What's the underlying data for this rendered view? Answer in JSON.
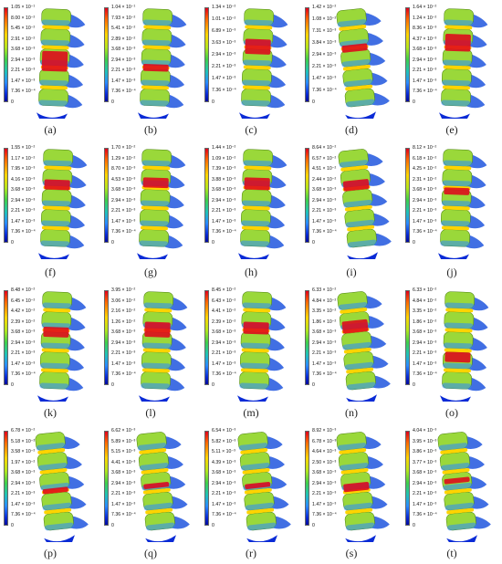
{
  "panels": [
    {
      "caption": "(a)",
      "ticks": [
        "1.05 × 10⁻¹",
        "8.00 × 10⁻²",
        "5.45 × 10⁻²",
        "2.91 × 10⁻²",
        "3.68 × 10⁻³",
        "2.94 × 10⁻³",
        "2.21 × 10⁻³",
        "1.47 × 10⁻³",
        "7.36 × 10⁻⁴",
        "0"
      ],
      "hot_band": [
        0.42,
        0.62
      ]
    },
    {
      "caption": "(b)",
      "ticks": [
        "1.04 × 10⁻¹",
        "7.93 × 10⁻²",
        "5.41 × 10⁻²",
        "2.89 × 10⁻²",
        "3.68 × 10⁻³",
        "2.94 × 10⁻³",
        "2.21 × 10⁻³",
        "1.47 × 10⁻³",
        "7.36 × 10⁻⁴",
        "0"
      ],
      "hot_band": [
        0.55,
        0.62
      ]
    },
    {
      "caption": "(c)",
      "ticks": [
        "1.34 × 10⁻²",
        "1.01 × 10⁻²",
        "6.89 × 10⁻³",
        "3.63 × 10⁻³",
        "2.94 × 10⁻³",
        "2.21 × 10⁻³",
        "1.47 × 10⁻³",
        "7.36 × 10⁻⁴",
        "0"
      ],
      "hot_band": [
        0.3,
        0.45
      ]
    },
    {
      "caption": "(d)",
      "ticks": [
        "1.42 × 10⁻²",
        "1.08 × 10⁻²",
        "7.31 × 10⁻³",
        "3.84 × 10⁻³",
        "2.94 × 10⁻³",
        "2.21 × 10⁻³",
        "1.47 × 10⁻³",
        "7.36 × 10⁻⁴",
        "0"
      ],
      "hot_band": [
        0.35,
        0.42
      ]
    },
    {
      "caption": "(e)",
      "ticks": [
        "1.64 × 10⁻²",
        "1.24 × 10⁻²",
        "8.36 × 10⁻³",
        "4.37 × 10⁻³",
        "3.68 × 10⁻³",
        "2.94 × 10⁻³",
        "2.21 × 10⁻³",
        "1.47 × 10⁻³",
        "7.36 × 10⁻⁴",
        "0"
      ],
      "hot_band": [
        0.25,
        0.42
      ]
    },
    {
      "caption": "(f)",
      "ticks": [
        "1.55 × 10⁻²",
        "1.17 × 10⁻²",
        "7.95 × 10⁻³",
        "4.16 × 10⁻³",
        "3.68 × 10⁻³",
        "2.94 × 10⁻³",
        "2.21 × 10⁻³",
        "1.47 × 10⁻³",
        "7.36 × 10⁻⁴",
        "0"
      ],
      "hot_band": [
        0.3,
        0.4
      ]
    },
    {
      "caption": "(g)",
      "ticks": [
        "1.70 × 10⁻²",
        "1.29 × 10⁻²",
        "8.70 × 10⁻³",
        "4.53 × 10⁻³",
        "3.68 × 10⁻³",
        "2.94 × 10⁻³",
        "2.21 × 10⁻³",
        "1.47 × 10⁻³",
        "7.36 × 10⁻⁴",
        "0"
      ],
      "hot_band": [
        0.28,
        0.38
      ]
    },
    {
      "caption": "(h)",
      "ticks": [
        "1.44 × 10⁻²",
        "1.09 × 10⁻²",
        "7.39 × 10⁻³",
        "3.88 × 10⁻³",
        "3.68 × 10⁻³",
        "2.94 × 10⁻³",
        "2.21 × 10⁻³",
        "1.47 × 10⁻³",
        "7.36 × 10⁻⁴",
        "0"
      ],
      "hot_band": [
        0.28,
        0.4
      ]
    },
    {
      "caption": "(i)",
      "ticks": [
        "8.64 × 10⁻²",
        "6.57 × 10⁻²",
        "4.51 × 10⁻²",
        "2.44 × 10⁻²",
        "3.68 × 10⁻³",
        "2.94 × 10⁻³",
        "2.21 × 10⁻³",
        "1.47 × 10⁻³",
        "7.36 × 10⁻⁴",
        "0"
      ],
      "hot_band": [
        0.3,
        0.4
      ]
    },
    {
      "caption": "(j)",
      "ticks": [
        "8.12 × 10⁻²",
        "6.18 × 10⁻²",
        "4.25 × 10⁻²",
        "2.31 × 10⁻²",
        "3.68 × 10⁻³",
        "2.94 × 10⁻³",
        "2.21 × 10⁻³",
        "1.47 × 10⁻³",
        "7.36 × 10⁻⁴",
        "0"
      ],
      "hot_band": [
        0.38,
        0.45
      ]
    },
    {
      "caption": "(k)",
      "ticks": [
        "8.48 × 10⁻²",
        "6.45 × 10⁻²",
        "4.42 × 10⁻²",
        "2.39 × 10⁻²",
        "3.68 × 10⁻³",
        "2.94 × 10⁻³",
        "2.21 × 10⁻³",
        "1.47 × 10⁻³",
        "7.36 × 10⁻⁴",
        "0"
      ],
      "hot_band": [
        0.35,
        0.45
      ]
    },
    {
      "caption": "(l)",
      "ticks": [
        "3.95 × 10⁻²",
        "3.06 × 10⁻²",
        "2.16 × 10⁻²",
        "1.26 × 10⁻²",
        "3.68 × 10⁻³",
        "2.94 × 10⁻³",
        "2.21 × 10⁻³",
        "1.47 × 10⁻³",
        "7.36 × 10⁻⁴",
        "0"
      ],
      "hot_band": [
        0.3,
        0.45
      ]
    },
    {
      "caption": "(m)",
      "ticks": [
        "8.45 × 10⁻²",
        "6.43 × 10⁻²",
        "4.41 × 10⁻²",
        "2.39 × 10⁻²",
        "3.68 × 10⁻³",
        "2.94 × 10⁻³",
        "2.21 × 10⁻³",
        "1.47 × 10⁻³",
        "7.36 × 10⁻⁴",
        "0"
      ],
      "hot_band": [
        0.3,
        0.42
      ]
    },
    {
      "caption": "(n)",
      "ticks": [
        "6.33 × 10⁻²",
        "4.84 × 10⁻²",
        "3.35 × 10⁻²",
        "1.86 × 10⁻²",
        "3.68 × 10⁻³",
        "2.94 × 10⁻³",
        "2.21 × 10⁻³",
        "1.47 × 10⁻³",
        "7.36 × 10⁻⁴",
        "0"
      ],
      "hot_band": [
        0.28,
        0.4
      ]
    },
    {
      "caption": "(o)",
      "ticks": [
        "6.33 × 10⁻²",
        "4.84 × 10⁻²",
        "3.35 × 10⁻²",
        "1.86 × 10⁻²",
        "3.68 × 10⁻³",
        "2.94 × 10⁻³",
        "2.21 × 10⁻³",
        "1.47 × 10⁻³",
        "7.36 × 10⁻⁴",
        "0"
      ],
      "hot_band": [
        0.6,
        0.7
      ]
    },
    {
      "caption": "(p)",
      "ticks": [
        "6.78 × 10⁻²",
        "5.18 × 10⁻²",
        "3.58 × 10⁻²",
        "1.97 × 10⁻²",
        "3.68 × 10⁻³",
        "2.94 × 10⁻³",
        "2.21 × 10⁻³",
        "1.47 × 10⁻³",
        "7.36 × 10⁻⁴",
        "0"
      ],
      "hot_band": [
        0.55,
        0.6
      ]
    },
    {
      "caption": "(q)",
      "ticks": [
        "6.62 × 10⁻³",
        "5.89 × 10⁻³",
        "5.15 × 10⁻³",
        "4.41 × 10⁻³",
        "3.68 × 10⁻³",
        "2.94 × 10⁻³",
        "2.21 × 10⁻³",
        "1.47 × 10⁻³",
        "7.36 × 10⁻⁴",
        "0"
      ],
      "hot_band": [
        0.5,
        0.55
      ]
    },
    {
      "caption": "(r)",
      "ticks": [
        "6.54 × 10⁻³",
        "5.82 × 10⁻³",
        "5.11 × 10⁻³",
        "4.39 × 10⁻³",
        "3.68 × 10⁻³",
        "2.94 × 10⁻³",
        "2.21 × 10⁻³",
        "1.47 × 10⁻³",
        "7.36 × 10⁻⁴",
        "0"
      ],
      "hot_band": [
        0.5,
        0.55
      ]
    },
    {
      "caption": "(s)",
      "ticks": [
        "8.92 × 10⁻³",
        "6.78 × 10⁻³",
        "4.64 × 10⁻³",
        "2.50 × 10⁻³",
        "3.68 × 10⁻³",
        "2.94 × 10⁻³",
        "2.21 × 10⁻³",
        "1.47 × 10⁻³",
        "7.36 × 10⁻⁴",
        "0"
      ],
      "hot_band": [
        0.5,
        0.58
      ]
    },
    {
      "caption": "(t)",
      "ticks": [
        "4.04 × 10⁻³",
        "3.95 × 10⁻³",
        "3.86 × 10⁻³",
        "3.77 × 10⁻³",
        "3.68 × 10⁻³",
        "2.94 × 10⁻³",
        "2.21 × 10⁻³",
        "1.47 × 10⁻³",
        "7.36 × 10⁻⁴",
        "0"
      ],
      "hot_band": [
        0.45,
        0.5
      ]
    }
  ],
  "colors": {
    "high": "#e0001b",
    "upper": "#ffd400",
    "mid": "#b5e61d",
    "low": "#2a8bff",
    "min": "#0a2bd6",
    "bone_base": "#9ad83a",
    "process": "#2c5fe0"
  }
}
